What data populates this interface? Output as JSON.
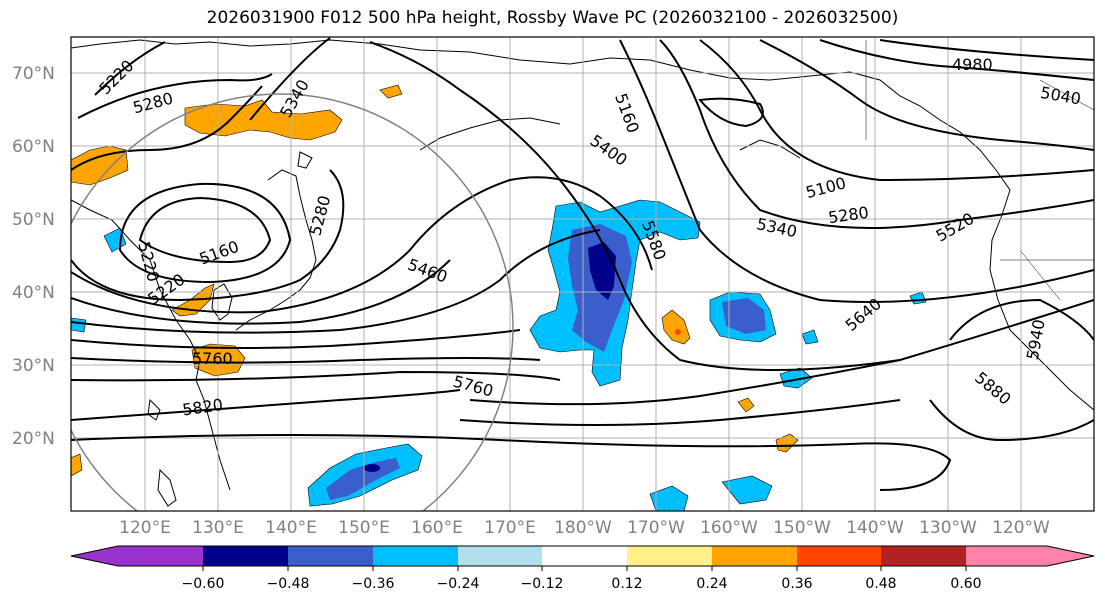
{
  "title": "2026031900 F012 500 hPa height, Rossby Wave PC (2026032100 - 2026032500)",
  "latitude_labels": [
    "70°N",
    "60°N",
    "50°N",
    "40°N",
    "30°N",
    "20°N"
  ],
  "longitude_labels": [
    "120°E",
    "130°E",
    "140°E",
    "150°E",
    "160°E",
    "170°E",
    "180°W",
    "170°W",
    "160°W",
    "150°W",
    "140°W",
    "130°W",
    "120°W"
  ],
  "contour_labels": [
    "5220",
    "5280",
    "5340",
    "5220",
    "5160",
    "5280",
    "5220",
    "5460",
    "5760",
    "5820",
    "5760",
    "5160",
    "5400",
    "5580",
    "5340",
    "5280",
    "5100",
    "4980",
    "5040",
    "5520",
    "5640",
    "5940",
    "5880"
  ],
  "colorbar": {
    "tick_labels": [
      "−0.60",
      "−0.48",
      "−0.36",
      "−0.24",
      "−0.12",
      "0.12",
      "0.24",
      "0.36",
      "0.48",
      "0.60"
    ],
    "colors": [
      "#9a32cd",
      "#00008b",
      "#3a5fcd",
      "#00bfff",
      "#b2dfee",
      "#ffffff",
      "#fff08a",
      "#ffa500",
      "#ff4500",
      "#b22222",
      "#ff82ab"
    ]
  }
}
